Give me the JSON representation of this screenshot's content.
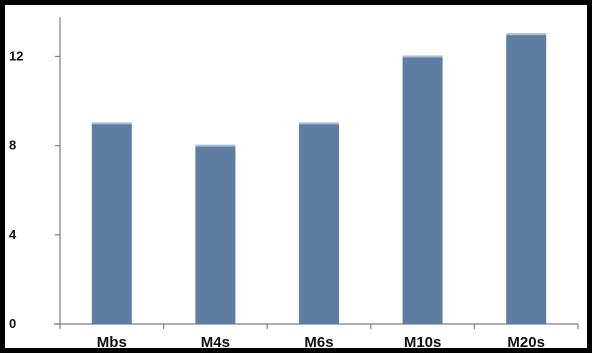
{
  "chart_data": {
    "type": "bar",
    "title": "",
    "xlabel": "",
    "ylabel": "",
    "categories": [
      "Mbs",
      "M4s",
      "M6s",
      "M10s",
      "M20s"
    ],
    "values": [
      9,
      8,
      9,
      12,
      13
    ],
    "ylim": [
      0,
      13.5
    ],
    "yticks": [
      0,
      4,
      8,
      12
    ],
    "ytick_labels": [
      "0",
      "4",
      "8",
      "12"
    ],
    "grid": false,
    "legend": "none",
    "colors": {
      "bar": "#5f7ca3",
      "bar_top": "#a9bdd6",
      "axis": "#7f7f7f",
      "text": "#111111"
    }
  }
}
